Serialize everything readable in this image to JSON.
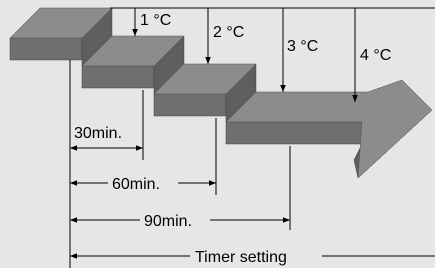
{
  "temperature_steps": [
    "1 °C",
    "2 °C",
    "3 °C",
    "4 °C"
  ],
  "durations": [
    "30min.",
    "60min.",
    "90min.",
    "Timer setting"
  ]
}
